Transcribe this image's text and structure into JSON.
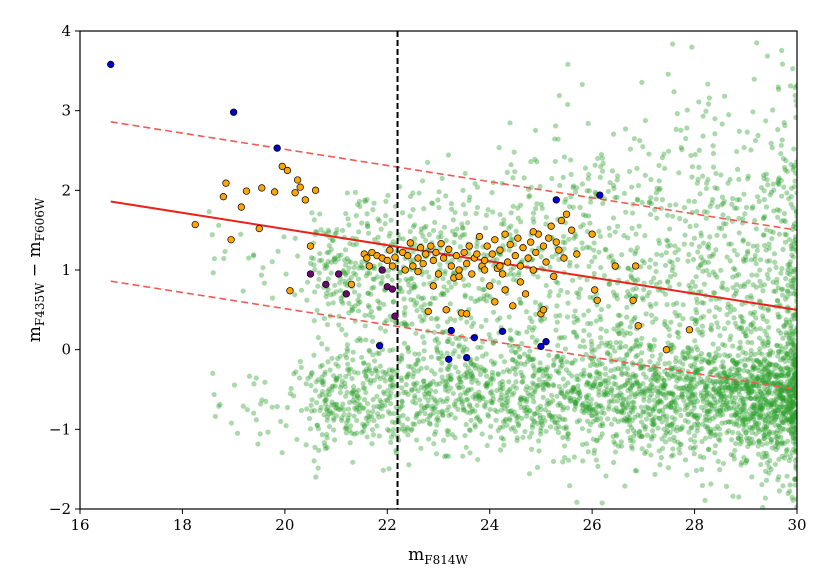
{
  "chart_data": {
    "type": "scatter",
    "title": "",
    "xlabel_main": "m",
    "xlabel_sub": "F814W",
    "ylabel_main_1": "m",
    "ylabel_sub_1": "F435W",
    "ylabel_minus": " − ",
    "ylabel_main_2": "m",
    "ylabel_sub_2": "F606W",
    "xlim": [
      16,
      30
    ],
    "ylim": [
      -2,
      4
    ],
    "xticks": [
      "16",
      "18",
      "20",
      "22",
      "24",
      "26",
      "28",
      "30"
    ],
    "yticks": [
      "−2",
      "−1",
      "0",
      "1",
      "2",
      "3",
      "4"
    ],
    "grid": false,
    "vline_x": 22.2,
    "lines": [
      {
        "style": "solid",
        "color": "#e8221d",
        "x": [
          16.6,
          30
        ],
        "y": [
          1.86,
          0.5
        ]
      },
      {
        "style": "dashed",
        "color": "#f05a55",
        "x": [
          16.6,
          30
        ],
        "y": [
          2.86,
          1.5
        ]
      },
      {
        "style": "dashed",
        "color": "#f05a55",
        "x": [
          16.6,
          30
        ],
        "y": [
          0.86,
          -0.5
        ]
      }
    ],
    "colors": {
      "background_points": "#2ca02c",
      "orange": "#ffa500",
      "blue": "#0000cd",
      "purple": "#6a0a6e",
      "vline": "#000000"
    },
    "series": [
      {
        "label": "blue",
        "points": [
          [
            16.6,
            3.58
          ],
          [
            19.0,
            2.98
          ],
          [
            19.85,
            2.53
          ],
          [
            21.85,
            0.05
          ],
          [
            23.2,
            -0.12
          ],
          [
            23.25,
            0.24
          ],
          [
            23.55,
            -0.1
          ],
          [
            23.7,
            0.15
          ],
          [
            24.25,
            0.23
          ],
          [
            25.0,
            0.04
          ],
          [
            25.1,
            0.1
          ],
          [
            25.3,
            1.88
          ],
          [
            26.15,
            1.94
          ]
        ]
      },
      {
        "label": "purple",
        "points": [
          [
            20.5,
            0.95
          ],
          [
            20.8,
            0.82
          ],
          [
            21.05,
            0.95
          ],
          [
            21.2,
            0.7
          ],
          [
            21.9,
            1.0
          ],
          [
            22.0,
            0.79
          ],
          [
            22.1,
            0.76
          ],
          [
            22.15,
            0.42
          ]
        ]
      },
      {
        "label": "orange",
        "points": [
          [
            18.25,
            1.57
          ],
          [
            18.8,
            1.92
          ],
          [
            18.85,
            2.09
          ],
          [
            18.95,
            1.38
          ],
          [
            19.15,
            1.79
          ],
          [
            19.25,
            1.99
          ],
          [
            19.5,
            1.52
          ],
          [
            19.55,
            2.03
          ],
          [
            19.8,
            1.98
          ],
          [
            19.95,
            2.3
          ],
          [
            20.05,
            2.25
          ],
          [
            20.1,
            0.74
          ],
          [
            20.2,
            1.97
          ],
          [
            20.25,
            2.13
          ],
          [
            20.3,
            2.04
          ],
          [
            20.4,
            1.88
          ],
          [
            20.5,
            1.3
          ],
          [
            20.6,
            2.0
          ],
          [
            21.3,
            0.82
          ],
          [
            21.55,
            1.2
          ],
          [
            21.6,
            1.15
          ],
          [
            21.65,
            1.05
          ],
          [
            21.7,
            1.22
          ],
          [
            21.8,
            1.18
          ],
          [
            21.9,
            1.15
          ],
          [
            22.0,
            1.12
          ],
          [
            22.05,
            1.25
          ],
          [
            22.1,
            1.05
          ],
          [
            22.15,
            1.16
          ],
          [
            22.3,
            1.22
          ],
          [
            22.35,
            1.0
          ],
          [
            22.45,
            1.34
          ],
          [
            22.5,
            1.05
          ],
          [
            22.6,
            1.15
          ],
          [
            22.65,
            1.28
          ],
          [
            22.7,
            1.08
          ],
          [
            22.75,
            1.2
          ],
          [
            22.8,
            0.48
          ],
          [
            22.85,
            1.3
          ],
          [
            22.9,
            1.12
          ],
          [
            22.95,
            1.22
          ],
          [
            23.0,
            0.95
          ],
          [
            23.05,
            1.33
          ],
          [
            23.1,
            1.15
          ],
          [
            23.15,
            0.5
          ],
          [
            23.2,
            1.26
          ],
          [
            23.25,
            1.05
          ],
          [
            23.3,
            0.9
          ],
          [
            23.35,
            1.18
          ],
          [
            23.4,
            1.0
          ],
          [
            23.45,
            0.46
          ],
          [
            23.5,
            1.22
          ],
          [
            23.55,
            1.08
          ],
          [
            23.6,
            1.3
          ],
          [
            23.65,
            0.95
          ],
          [
            23.7,
            1.15
          ],
          [
            23.75,
            1.2
          ],
          [
            23.8,
            1.42
          ],
          [
            23.85,
            1.05
          ],
          [
            23.9,
            1.12
          ],
          [
            23.95,
            1.3
          ],
          [
            24.0,
            0.8
          ],
          [
            24.05,
            1.2
          ],
          [
            24.1,
            1.38
          ],
          [
            24.15,
            1.02
          ],
          [
            24.2,
            1.25
          ],
          [
            24.25,
            0.95
          ],
          [
            24.3,
            1.45
          ],
          [
            24.35,
            1.1
          ],
          [
            24.4,
            1.32
          ],
          [
            24.45,
            0.55
          ],
          [
            24.5,
            1.18
          ],
          [
            24.55,
            1.4
          ],
          [
            24.6,
            1.05
          ],
          [
            24.65,
            1.28
          ],
          [
            24.7,
            0.7
          ],
          [
            24.75,
            1.15
          ],
          [
            24.8,
            1.35
          ],
          [
            24.85,
            1.0
          ],
          [
            24.9,
            1.22
          ],
          [
            24.95,
            1.45
          ],
          [
            25.0,
            0.45
          ],
          [
            25.05,
            1.3
          ],
          [
            25.1,
            1.1
          ],
          [
            25.15,
            1.4
          ],
          [
            25.2,
            1.55
          ],
          [
            25.25,
            0.92
          ],
          [
            25.3,
            1.35
          ],
          [
            25.35,
            1.25
          ],
          [
            25.4,
            1.62
          ],
          [
            25.45,
            1.15
          ],
          [
            25.5,
            1.7
          ],
          [
            25.6,
            1.5
          ],
          [
            25.7,
            1.2
          ],
          [
            26.0,
            1.45
          ],
          [
            26.05,
            0.75
          ],
          [
            26.1,
            0.62
          ],
          [
            26.45,
            1.05
          ],
          [
            26.8,
            0.62
          ],
          [
            26.85,
            1.05
          ],
          [
            26.9,
            0.3
          ],
          [
            27.45,
            0.0
          ],
          [
            27.9,
            0.25
          ],
          [
            22.6,
            0.98
          ],
          [
            23.4,
            0.92
          ],
          [
            24.1,
            0.6
          ],
          [
            24.3,
            0.75
          ],
          [
            24.6,
            0.85
          ],
          [
            23.9,
            1.0
          ],
          [
            22.9,
            0.8
          ],
          [
            23.55,
            0.45
          ],
          [
            24.85,
            1.48
          ],
          [
            25.05,
            0.5
          ],
          [
            22.4,
            1.18
          ],
          [
            24.2,
            1.05
          ]
        ]
      }
    ]
  }
}
